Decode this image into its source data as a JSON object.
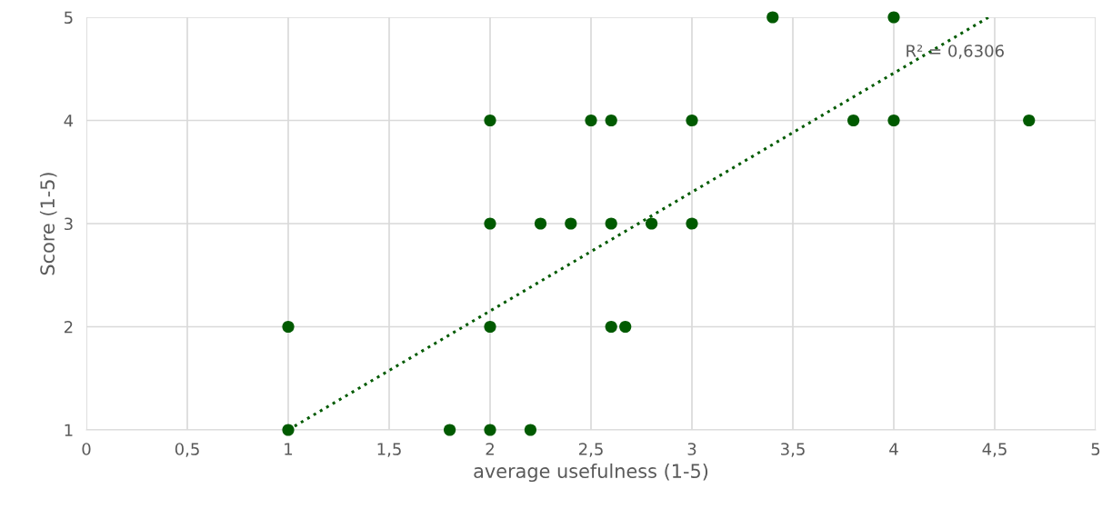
{
  "chart_data": {
    "type": "scatter",
    "xlabel": "average usefulness (1-5)",
    "ylabel": "Score (1-5)",
    "xlim": [
      0,
      5
    ],
    "ylim": [
      1,
      5
    ],
    "xticks": [
      0,
      {
        "value": 0.5,
        "label": "0,5"
      },
      1,
      {
        "value": 1.5,
        "label": "1,5"
      },
      2,
      {
        "value": 2.5,
        "label": "2,5"
      },
      3,
      {
        "value": 3.5,
        "label": "3,5"
      },
      4,
      {
        "value": 4.5,
        "label": "4,5"
      },
      5
    ],
    "yticks": [
      1,
      2,
      3,
      4,
      5
    ],
    "grid": true,
    "series": [
      {
        "marker": "circle",
        "color": "#005a00",
        "x": [
          1,
          1,
          1.8,
          2,
          2.2,
          2,
          2,
          2,
          2.25,
          2.4,
          2.5,
          2.6,
          2.6,
          2.6,
          2.67,
          2.8,
          3,
          3,
          3.4,
          3.8,
          4,
          4,
          4.67
        ],
        "values": [
          2,
          1,
          1,
          1,
          1,
          2,
          3,
          4,
          3,
          3,
          4,
          4,
          3,
          2,
          2,
          3,
          4,
          3,
          5,
          4,
          4,
          5,
          4
        ]
      },
      {
        "type": "line",
        "color": "#005a00",
        "line_style": "dotted",
        "x": [
          1,
          4.47
        ],
        "values": [
          1,
          5
        ]
      }
    ],
    "annotations": [
      "R² = 0,6306"
    ]
  }
}
